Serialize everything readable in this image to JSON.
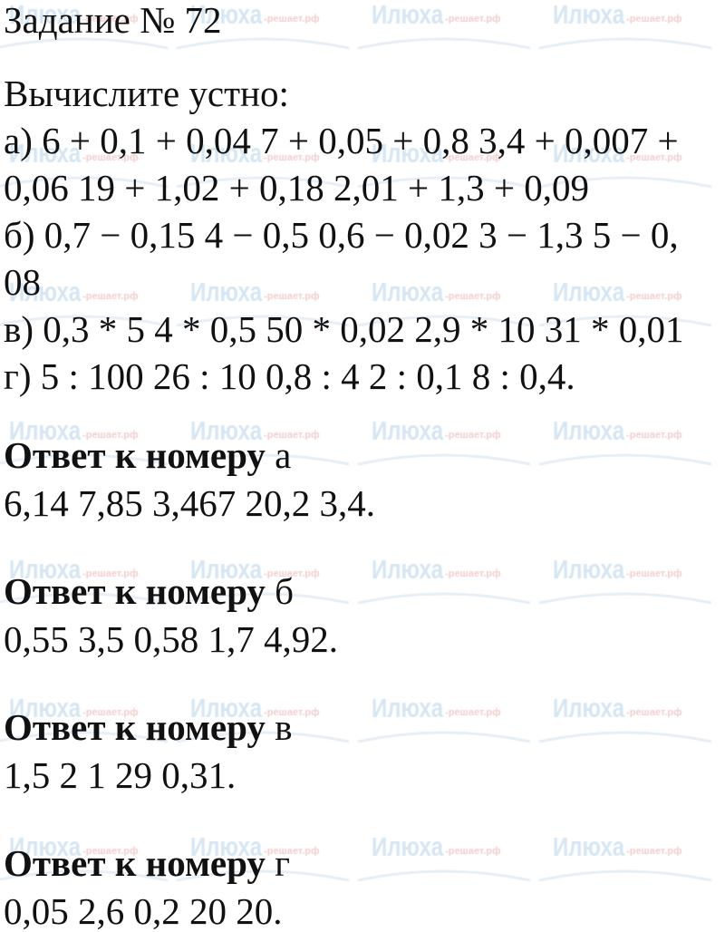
{
  "watermark": {
    "brand": "Илюха",
    "suffix": "-решает.рф"
  },
  "task": {
    "title": "Задание № 72",
    "instruction": "Вычислите устно:",
    "lines": [
      "а) 6 + 0,1 + 0,04 7 + 0,05 + 0,8 3,4 + 0,007 +",
      "0,06 19 + 1,02 + 0,18 2,01 + 1,3 + 0,09",
      "б) 0,7 − 0,15 4 − 0,5 0,6 − 0,02 3 − 1,3 5 − 0,",
      "08",
      "в) 0,3 * 5 4 * 0,5 50 * 0,02 2,9 * 10 31 * 0,01",
      "г) 5 : 100 26 : 10 0,8 : 4 2 : 0,1 8 : 0,4."
    ]
  },
  "answers": [
    {
      "label": "Ответ к номеру",
      "letter": "а",
      "text": "6,14 7,85 3,467 20,2 3,4."
    },
    {
      "label": "Ответ к номеру",
      "letter": "б",
      "text": "0,55 3,5 0,58 1,7 4,92."
    },
    {
      "label": "Ответ к номеру",
      "letter": "в",
      "text": "1,5 2 1 29 0,31."
    },
    {
      "label": "Ответ к номеру",
      "letter": "г",
      "text": "0,05 2,6 0,2 20 20."
    }
  ]
}
